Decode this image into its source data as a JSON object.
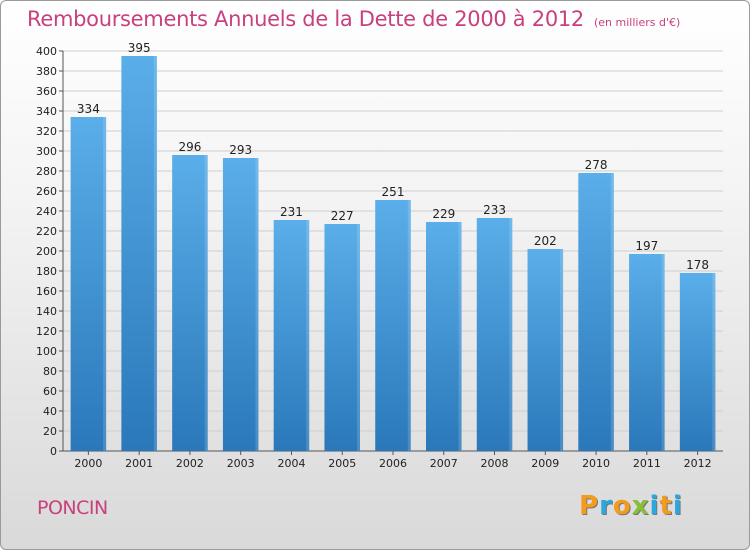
{
  "title": "Remboursements Annuels de la Dette de 2000 à 2012",
  "unit": "(en milliers d'€)",
  "town": "PONCIN",
  "brand": {
    "text": "Proxiti",
    "letters": [
      {
        "ch": "P",
        "color": "#f39b1e"
      },
      {
        "ch": "r",
        "color": "#2aa7de"
      },
      {
        "ch": "o",
        "color": "#f39b1e"
      },
      {
        "ch": "x",
        "color": "#88be3a"
      },
      {
        "ch": "i",
        "color": "#2aa7de"
      },
      {
        "ch": "t",
        "color": "#f39b1e"
      },
      {
        "ch": "i",
        "color": "#2aa7de"
      }
    ]
  },
  "colors": {
    "title": "#c8407e",
    "bar_top": "#5aaee9",
    "bar_bottom": "#2a78ba",
    "grid": "#cfcfcf"
  },
  "chart_data": {
    "type": "bar",
    "title": "Remboursements Annuels de la Dette de 2000 à 2012",
    "subtitle": "(en milliers d'€)",
    "categories": [
      "2000",
      "2001",
      "2002",
      "2003",
      "2004",
      "2005",
      "2006",
      "2007",
      "2008",
      "2009",
      "2010",
      "2011",
      "2012"
    ],
    "values": [
      334,
      395,
      296,
      293,
      231,
      227,
      251,
      229,
      233,
      202,
      278,
      197,
      178
    ],
    "ylim": [
      0,
      400
    ],
    "ytick_step": 20,
    "grid": true,
    "xlabel": "",
    "ylabel": ""
  }
}
